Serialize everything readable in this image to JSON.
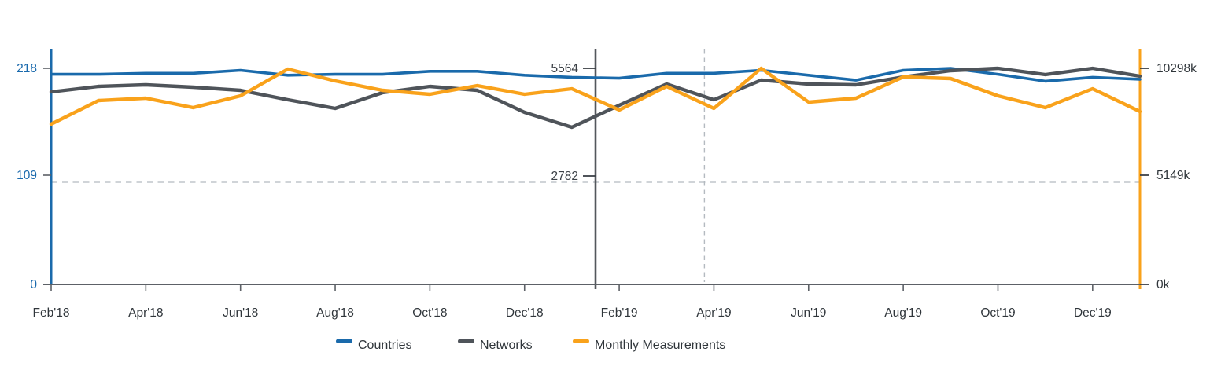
{
  "chart_data": {
    "type": "line",
    "title": "",
    "x_tick_labels": [
      "Feb'18",
      "Apr'18",
      "Jun'18",
      "Aug'18",
      "Oct'18",
      "Dec'18",
      "Feb'19",
      "Apr'19",
      "Jun'19",
      "Aug'19",
      "Oct'19",
      "Dec'19"
    ],
    "months": [
      "Feb'18",
      "Mar'18",
      "Apr'18",
      "May'18",
      "Jun'18",
      "Jul'18",
      "Aug'18",
      "Sep'18",
      "Oct'18",
      "Nov'18",
      "Dec'18",
      "Jan'19",
      "Feb'19",
      "Mar'19",
      "Apr'19",
      "May'19",
      "Jun'19",
      "Jul'19",
      "Aug'19",
      "Sep'19",
      "Oct'19",
      "Nov'19",
      "Dec'19",
      "Jan'20"
    ],
    "axes": {
      "left": {
        "title": "Countries",
        "tick_labels": [
          "218",
          "109",
          "0"
        ],
        "max": 218,
        "label_color": "#1a6aad"
      },
      "inner": {
        "title": "Networks",
        "tick_labels": [
          "5564",
          "2782"
        ],
        "max": 5564,
        "label_color": "#3c4147",
        "position_month_index": 11.5
      },
      "right": {
        "title": "Monthly Measurements",
        "tick_labels": [
          "10298k",
          "5149k",
          "0k"
        ],
        "max": 10298,
        "label_color": "#2f353a"
      }
    },
    "series": [
      {
        "name": "Countries",
        "color": "#1a6aab",
        "axis": "left",
        "width": 3.6,
        "values": [
          212,
          212,
          213,
          213,
          216,
          211,
          212,
          212,
          215,
          215,
          211,
          209,
          208,
          213,
          213,
          216,
          211,
          206,
          216,
          218,
          212,
          205,
          209,
          207
        ]
      },
      {
        "name": "Networks",
        "color": "#4f545a",
        "axis": "inner",
        "width": 4.4,
        "values": [
          4957,
          5099,
          5139,
          5078,
          4997,
          4755,
          4532,
          4937,
          5099,
          4997,
          4431,
          4047,
          4613,
          5159,
          4755,
          5260,
          5159,
          5139,
          5341,
          5503,
          5564,
          5402,
          5564,
          5361
        ]
      },
      {
        "name": "Monthly Measurements",
        "color": "#f9a21b",
        "axis": "right",
        "unit": "k",
        "width": 4.4,
        "values": [
          7639,
          8763,
          8875,
          8426,
          8987,
          10260,
          9699,
          9249,
          9062,
          9474,
          9062,
          9324,
          8313,
          9437,
          8388,
          10298,
          8688,
          8875,
          9886,
          9811,
          8987,
          8426,
          9324,
          8238
        ]
      }
    ],
    "annotations": {
      "vertical_solid_line": {
        "month_index": 11.5,
        "color": "#53575c"
      },
      "vertical_dashed_line": {
        "month_index": 13.8,
        "color": "#b4bac0"
      },
      "horizontal_dashed_line": {
        "left_axis_value": 103,
        "color": "#b4bac0"
      }
    },
    "grid": "off",
    "legend": {
      "position": "bottom"
    },
    "baseline_color": "#5d6167"
  }
}
